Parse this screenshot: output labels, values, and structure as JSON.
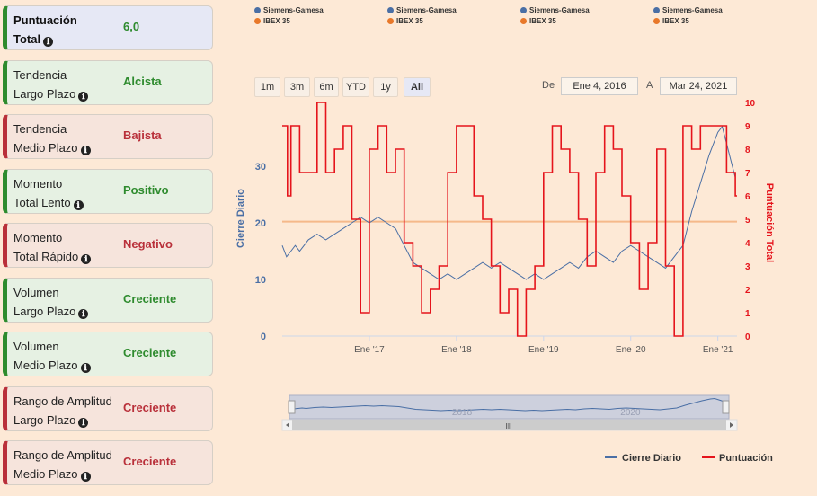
{
  "cards": [
    {
      "label1": "Puntuación",
      "label2": "Total",
      "value": "6,0",
      "tone": "total"
    },
    {
      "label1": "Tendencia",
      "label2": "Largo Plazo",
      "value": "Alcista",
      "tone": "green"
    },
    {
      "label1": "Tendencia",
      "label2": "Medio Plazo",
      "value": "Bajista",
      "tone": "red"
    },
    {
      "label1": "Momento",
      "label2": "Total Lento",
      "value": "Positivo",
      "tone": "green"
    },
    {
      "label1": "Momento",
      "label2": "Total Rápido",
      "value": "Negativo",
      "tone": "red"
    },
    {
      "label1": "Volumen",
      "label2": "Largo Plazo",
      "value": "Creciente",
      "tone": "green"
    },
    {
      "label1": "Volumen",
      "label2": "Medio Plazo",
      "value": "Creciente",
      "tone": "green"
    },
    {
      "label1": "Rango de Amplitud",
      "label2": "Largo Plazo",
      "value": "Creciente",
      "tone": "red"
    },
    {
      "label1": "Rango de Amplitud",
      "label2": "Medio Plazo",
      "value": "Creciente",
      "tone": "red"
    }
  ],
  "info_icon": "ℹ",
  "top_legend": [
    {
      "blue": "Siemens-Gamesa",
      "orange": "IBEX 35"
    },
    {
      "blue": "Siemens-Gamesa",
      "orange": "IBEX 35"
    },
    {
      "blue": "Siemens-Gamesa",
      "orange": "IBEX 35"
    },
    {
      "blue": "Siemens-Gamesa",
      "orange": "IBEX 35"
    }
  ],
  "range_buttons": [
    "1m",
    "3m",
    "6m",
    "YTD",
    "1y",
    "All"
  ],
  "date_from_label": "De",
  "date_from": "Ene 4, 2016",
  "date_to_label": "A",
  "date_to": "Mar 24, 2021",
  "navigator_labels": [
    "2018",
    "2020"
  ],
  "navigator_grip": "III",
  "colors": {
    "close": "#4a6fa5",
    "score": "#e5141c",
    "ibex": "#f5b98a",
    "axis_left": "#4a6fa5",
    "axis_right": "#e5141c"
  },
  "chart_data": {
    "type": "line",
    "x_ticks": [
      "Ene '17",
      "Ene '18",
      "Ene '19",
      "Ene '20",
      "Ene '21"
    ],
    "x_ticks_pos": [
      1.0,
      2.0,
      3.0,
      4.0,
      5.0
    ],
    "xlim": [
      0,
      5.22
    ],
    "ylabel_left": "Cierre Diario",
    "ylabel_right": "Puntuación Total",
    "yticks_left": [
      0,
      10,
      20,
      30
    ],
    "ylim_left": [
      0,
      40
    ],
    "yticks_right": [
      0,
      1,
      2,
      3,
      4,
      5,
      6,
      7,
      8,
      9,
      10
    ],
    "ylim_right": [
      0,
      10
    ],
    "reference_line": {
      "axis": "right",
      "value": 4.9,
      "name": "IBEX 35"
    },
    "series": [
      {
        "name": "Cierre Diario",
        "axis": "left",
        "x": [
          0,
          0.05,
          0.1,
          0.15,
          0.2,
          0.3,
          0.4,
          0.5,
          0.6,
          0.7,
          0.8,
          0.9,
          1.0,
          1.1,
          1.2,
          1.3,
          1.4,
          1.5,
          1.6,
          1.7,
          1.8,
          1.9,
          2.0,
          2.1,
          2.2,
          2.3,
          2.4,
          2.5,
          2.6,
          2.7,
          2.8,
          2.9,
          3.0,
          3.1,
          3.2,
          3.3,
          3.4,
          3.5,
          3.6,
          3.7,
          3.8,
          3.9,
          4.0,
          4.1,
          4.2,
          4.3,
          4.4,
          4.5,
          4.6,
          4.7,
          4.8,
          4.9,
          5.0,
          5.05,
          5.1,
          5.15,
          5.2
        ],
        "y": [
          16,
          14,
          15,
          16,
          15,
          17,
          18,
          17,
          18,
          19,
          20,
          21,
          20,
          21,
          20,
          19,
          16,
          13,
          12,
          11,
          10,
          11,
          10,
          11,
          12,
          13,
          12,
          13,
          12,
          11,
          10,
          11,
          10,
          11,
          12,
          13,
          12,
          14,
          15,
          14,
          13,
          15,
          16,
          15,
          14,
          13,
          12,
          14,
          16,
          22,
          27,
          32,
          36,
          37,
          34,
          31,
          28
        ]
      },
      {
        "name": "Puntuación",
        "axis": "right",
        "x": [
          0,
          0.06,
          0.1,
          0.2,
          0.4,
          0.5,
          0.6,
          0.7,
          0.8,
          0.9,
          1.0,
          1.1,
          1.2,
          1.3,
          1.4,
          1.5,
          1.6,
          1.7,
          1.8,
          1.9,
          2.0,
          2.1,
          2.2,
          2.3,
          2.4,
          2.5,
          2.6,
          2.7,
          2.8,
          2.9,
          3.0,
          3.1,
          3.2,
          3.3,
          3.4,
          3.5,
          3.6,
          3.7,
          3.8,
          3.9,
          4.0,
          4.1,
          4.2,
          4.3,
          4.4,
          4.5,
          4.6,
          4.7,
          4.8,
          4.9,
          5.0,
          5.1,
          5.2
        ],
        "y": [
          9,
          6,
          9,
          7,
          10,
          7,
          8,
          9,
          5,
          1,
          8,
          9,
          7,
          8,
          4,
          3,
          1,
          2,
          3,
          7,
          9,
          9,
          6,
          5,
          3,
          1,
          2,
          0,
          2,
          3,
          7,
          9,
          8,
          7,
          5,
          3,
          7,
          9,
          8,
          6,
          4,
          2,
          4,
          8,
          3,
          0,
          9,
          8,
          9,
          9,
          9,
          7,
          6
        ]
      }
    ],
    "legend": [
      "Cierre Diario",
      "Puntuación"
    ]
  }
}
